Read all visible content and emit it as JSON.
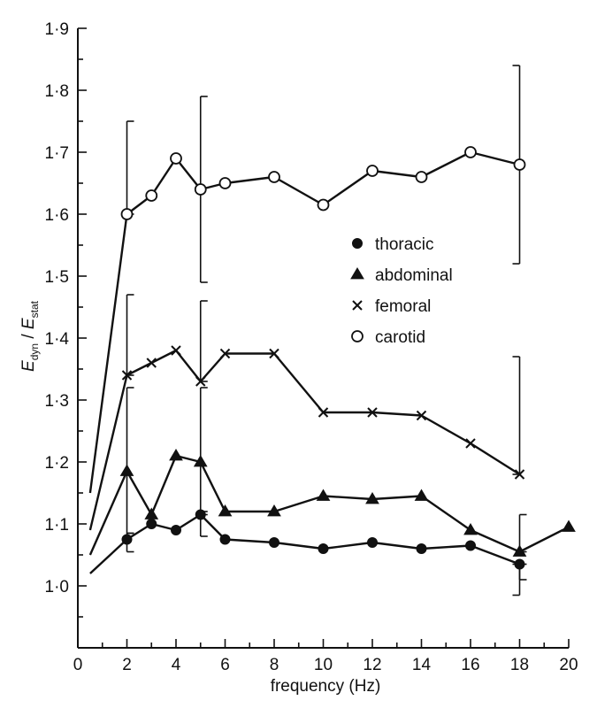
{
  "chart_data": {
    "type": "line",
    "xlabel": "frequency (Hz)",
    "ylabel_main": "E",
    "ylabel_sub1": "dyn",
    "ylabel_sep": " / ",
    "ylabel_sub2": "stat",
    "xlim": [
      0,
      20
    ],
    "ylim": [
      0.9,
      1.9
    ],
    "xticks": [
      0,
      2,
      4,
      6,
      8,
      10,
      12,
      14,
      16,
      18,
      20
    ],
    "xtick_labels": [
      "0",
      "2",
      "4",
      "6",
      "8",
      "10",
      "12",
      "14",
      "16",
      "18",
      "20"
    ],
    "yticks": [
      1.0,
      1.1,
      1.2,
      1.3,
      1.4,
      1.5,
      1.6,
      1.7,
      1.8,
      1.9
    ],
    "ytick_labels": [
      "1·0",
      "1·1",
      "1·2",
      "1·3",
      "1·4",
      "1·5",
      "1·6",
      "1·7",
      "1·8",
      "1·9"
    ],
    "legend_position": "right-middle",
    "grid": false,
    "series": [
      {
        "name": "thoracic",
        "marker": "filled-circle",
        "color": "#111111",
        "x": [
          0.5,
          2,
          3,
          4,
          5,
          6,
          8,
          10,
          12,
          14,
          16,
          18
        ],
        "y": [
          1.02,
          1.075,
          1.1,
          1.09,
          1.115,
          1.075,
          1.07,
          1.06,
          1.07,
          1.06,
          1.065,
          1.035
        ],
        "marked": [
          false,
          true,
          true,
          true,
          true,
          true,
          true,
          true,
          true,
          true,
          true,
          true
        ]
      },
      {
        "name": "abdominal",
        "marker": "filled-triangle",
        "color": "#111111",
        "x": [
          0.5,
          2,
          3,
          4,
          5,
          6,
          8,
          10,
          12,
          14,
          16,
          18,
          20
        ],
        "y": [
          1.05,
          1.185,
          1.115,
          1.21,
          1.2,
          1.12,
          1.12,
          1.145,
          1.14,
          1.145,
          1.09,
          1.055,
          1.095
        ],
        "marked": [
          false,
          true,
          true,
          true,
          true,
          true,
          true,
          true,
          true,
          true,
          true,
          true,
          true
        ]
      },
      {
        "name": "femoral",
        "marker": "cross",
        "color": "#111111",
        "x": [
          0.5,
          2,
          3,
          4,
          5,
          6,
          8,
          10,
          12,
          14,
          16,
          18
        ],
        "y": [
          1.09,
          1.34,
          1.36,
          1.38,
          1.33,
          1.375,
          1.375,
          1.28,
          1.28,
          1.275,
          1.23,
          1.18
        ],
        "marked": [
          false,
          true,
          true,
          true,
          true,
          true,
          true,
          true,
          true,
          true,
          true,
          true
        ]
      },
      {
        "name": "carotid",
        "marker": "open-circle",
        "color": "#111111",
        "x": [
          0.5,
          2,
          3,
          4,
          5,
          6,
          8,
          10,
          12,
          14,
          16,
          18
        ],
        "y": [
          1.15,
          1.6,
          1.63,
          1.69,
          1.64,
          1.65,
          1.66,
          1.615,
          1.67,
          1.66,
          1.7,
          1.68
        ],
        "marked": [
          false,
          true,
          true,
          true,
          true,
          true,
          true,
          true,
          true,
          true,
          true,
          true
        ]
      }
    ],
    "error_bars": [
      {
        "x": 2,
        "low": 1.6,
        "high": 1.75,
        "side": "right"
      },
      {
        "x": 5,
        "low": 1.49,
        "high": 1.79,
        "side": "right"
      },
      {
        "x": 18,
        "low": 1.52,
        "high": 1.84,
        "side": "left"
      },
      {
        "x": 2,
        "low": 1.34,
        "high": 1.47,
        "side": "right"
      },
      {
        "x": 5,
        "low": 1.33,
        "high": 1.46,
        "side": "right"
      },
      {
        "x": 18,
        "low": 1.18,
        "high": 1.37,
        "side": "left"
      },
      {
        "x": 2,
        "low": 1.085,
        "high": 1.32,
        "side": "right"
      },
      {
        "x": 5,
        "low": 1.115,
        "high": 1.32,
        "side": "right"
      },
      {
        "x": 18,
        "low": 1.055,
        "high": 1.115,
        "side": "right"
      },
      {
        "x": 2,
        "low": 1.055,
        "high": 1.085,
        "side": "right"
      },
      {
        "x": 5,
        "low": 1.08,
        "high": 1.12,
        "side": "right"
      },
      {
        "x": 18,
        "low": 0.985,
        "high": 1.035,
        "side": "left"
      },
      {
        "x": 18,
        "low": 1.01,
        "high": 1.035,
        "side": "right"
      }
    ]
  }
}
